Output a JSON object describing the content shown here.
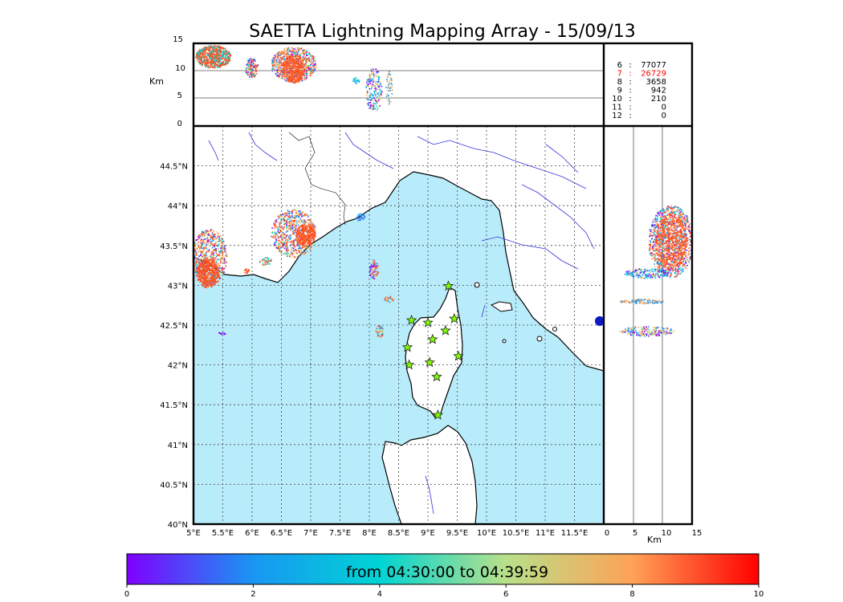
{
  "title": "SAETTA Lightning Mapping Array - 15/09/13",
  "top_panel": {
    "unit_label": "Km",
    "ticks": [
      "15",
      "10",
      "5",
      "0"
    ]
  },
  "station_counts": [
    {
      "stations": "6",
      "sep": ":",
      "count": "77077",
      "highlight": false
    },
    {
      "stations": "7",
      "sep": ":",
      "count": "26729",
      "highlight": true
    },
    {
      "stations": "8",
      "sep": ":",
      "count": "3658",
      "highlight": false
    },
    {
      "stations": "9",
      "sep": ":",
      "count": "942",
      "highlight": false
    },
    {
      "stations": "10",
      "sep": ":",
      "count": "210",
      "highlight": false
    },
    {
      "stations": "11",
      "sep": ":",
      "count": "0",
      "highlight": false
    },
    {
      "stations": "12",
      "sep": ":",
      "count": "0",
      "highlight": false
    }
  ],
  "map": {
    "lat_labels": [
      "44.5°N",
      "44°N",
      "43.5°N",
      "43°N",
      "42.5°N",
      "42°N",
      "41.5°N",
      "41°N",
      "40.5°N",
      "40°N"
    ],
    "lon_labels": [
      "5°E",
      "5.5°E",
      "6°E",
      "6.5°E",
      "7°E",
      "7.5°E",
      "8°E",
      "8.5°E",
      "9°E",
      "9.5°E",
      "10°E",
      "10.5°E",
      "11°E",
      "11.5°E"
    ],
    "lon_range": [
      5,
      12
    ],
    "lat_range": [
      40,
      45
    ],
    "sea_color": "#b8ecfb",
    "land_color": "#ffffff",
    "river_color": "#3333dd",
    "grid": true
  },
  "right_panel": {
    "unit_label": "Km",
    "ticks": [
      "0",
      "5",
      "10",
      "15"
    ]
  },
  "stations": [
    {
      "lon": 9.35,
      "lat": 42.99
    },
    {
      "lon": 8.72,
      "lat": 42.56
    },
    {
      "lon": 9.0,
      "lat": 42.53
    },
    {
      "lon": 9.45,
      "lat": 42.58
    },
    {
      "lon": 9.08,
      "lat": 42.32
    },
    {
      "lon": 9.3,
      "lat": 42.43
    },
    {
      "lon": 8.65,
      "lat": 42.22
    },
    {
      "lon": 9.52,
      "lat": 42.11
    },
    {
      "lon": 8.68,
      "lat": 42.0
    },
    {
      "lon": 9.03,
      "lat": 42.03
    },
    {
      "lon": 9.15,
      "lat": 41.85
    },
    {
      "lon": 9.17,
      "lat": 41.37
    }
  ],
  "colorbar": {
    "label": "from 04:30:00 to 04:39:59",
    "ticks": [
      "0",
      "2",
      "4",
      "6",
      "8",
      "10"
    ],
    "range": [
      0,
      10
    ]
  }
}
